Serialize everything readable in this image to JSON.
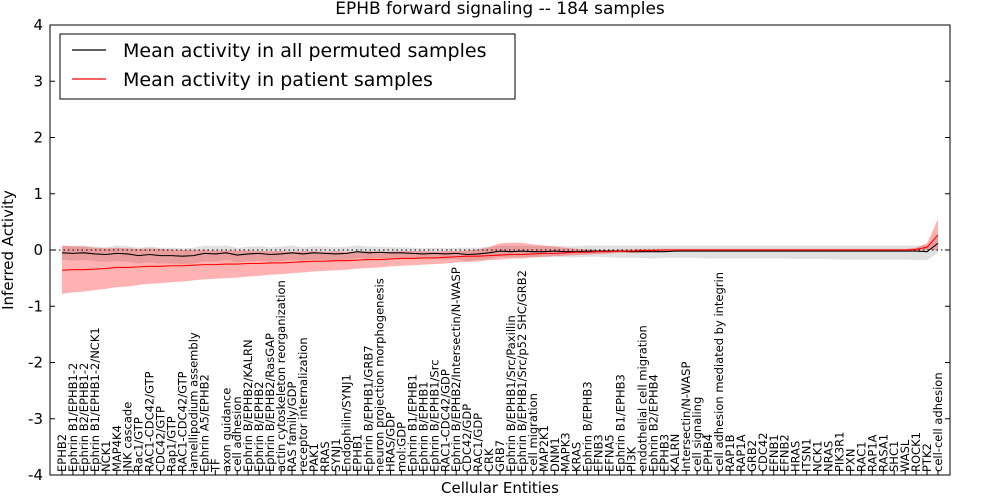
{
  "chart_data": {
    "type": "line",
    "title": "EPHB forward signaling -- 184 samples",
    "xlabel": "Cellular Entities",
    "ylabel": "Inferred Activity",
    "ylim": [
      -4,
      4
    ],
    "yticks": [
      -4,
      -3,
      -2,
      -1,
      0,
      1,
      2,
      3,
      4
    ],
    "reference_line_y": 0,
    "legend": {
      "position": "top-left",
      "entries": [
        {
          "label": "Mean activity in all permuted samples",
          "color": "#000000"
        },
        {
          "label": "Mean activity in patient samples",
          "color": "#ff0000"
        }
      ]
    },
    "categories": [
      "EPHB2",
      "Ephrin B1/EPHB1-2",
      "Ephrin B2/EPHB1-2",
      "Ephrin B1/EPHB1-2/NCK1",
      "NCK1",
      "MAP4K4",
      "JNK cascade",
      "Rac1/GTP",
      "RAC1-CDC42/GTP",
      "CDC42/GTP",
      "Rap1/GTP",
      "RAC1-CDC42/GTP",
      "lamellipodium assembly",
      "Ephrin A5/EPHB2",
      "TF",
      "axon guidance",
      "cell adhesion",
      "Ephrin B/EPHB2/KALRN",
      "Ephrin B/EPHB2",
      "Ephrin B/EPHB2/RasGAP",
      "actin cytoskeleton reorganization",
      "RAS family/GDP",
      "receptor internalization",
      "PAK1",
      "RRAS",
      "SYNJ1",
      "Endophilin/SYNJ1",
      "EPHB1",
      "Ephrin B/EPHB1/GRB7",
      "neuron projection morphogenesis",
      "HRAS/GDP",
      "mol:GDP",
      "Ephrin B1/EPHB1",
      "Ephrin B/EPHB1",
      "Ephrin B/EPHB1/Src",
      "RAC1-CDC42/GDP",
      "Ephrin B/EPHB2/Intersectin/N-WASP",
      "CDC42/GDP",
      "RAC1/GDP",
      "CRK",
      "GRB7",
      "Ephrin B/EPHB1/Src/Paxillin",
      "Ephrin B/EPHB1/Src/p52 SHC/GRB2",
      "cell migration",
      "MAP2K1",
      "DNM1",
      "MAPK3",
      "KRAS",
      "Ephrin B/EPHB3",
      "EFNB3",
      "EFNA5",
      "Ephrin B1/EPHB3",
      "PI3K",
      "endothelial cell migration",
      "Ephrin B2/EPHB4",
      "EPHB3",
      "KALRN",
      "Intersectin/N-WASP",
      "cell signaling",
      "EPHB4",
      "cell adhesion mediated by integrin",
      "RAP1B",
      "RAP1A",
      "GRB2",
      "CDC42",
      "EFNB1",
      "EFNB2",
      "HRAS",
      "ITSN1",
      "NCK1",
      "NRAS",
      "PIK3R1",
      "PXN",
      "RAC1",
      "RAP1A",
      "RASA1",
      "SHC1",
      "WASL",
      "ROCK1",
      "PTK2",
      "cell-cell adhesion"
    ],
    "series": [
      {
        "name": "Mean activity in all permuted samples",
        "color": "#000000",
        "values": [
          -0.05,
          -0.06,
          -0.05,
          -0.07,
          -0.08,
          -0.06,
          -0.07,
          -0.1,
          -0.08,
          -0.1,
          -0.1,
          -0.11,
          -0.1,
          -0.06,
          -0.07,
          -0.05,
          -0.09,
          -0.07,
          -0.06,
          -0.08,
          -0.07,
          -0.05,
          -0.07,
          -0.05,
          -0.06,
          -0.07,
          -0.06,
          -0.03,
          -0.05,
          -0.04,
          -0.05,
          -0.05,
          -0.06,
          -0.07,
          -0.06,
          -0.07,
          -0.06,
          -0.08,
          -0.07,
          -0.05,
          -0.02,
          -0.03,
          -0.02,
          -0.03,
          -0.03,
          -0.02,
          -0.03,
          -0.03,
          -0.02,
          -0.02,
          -0.02,
          -0.02,
          -0.03,
          -0.03,
          -0.03,
          -0.03,
          -0.02,
          -0.02,
          -0.02,
          -0.02,
          -0.02,
          -0.02,
          -0.02,
          -0.02,
          -0.02,
          -0.02,
          -0.02,
          -0.02,
          -0.02,
          -0.02,
          -0.02,
          -0.02,
          -0.02,
          -0.02,
          -0.02,
          -0.02,
          -0.02,
          -0.02,
          -0.02,
          -0.03,
          0.12
        ],
        "band_lower": [
          -0.17,
          -0.19,
          -0.18,
          -0.2,
          -0.21,
          -0.2,
          -0.21,
          -0.24,
          -0.22,
          -0.24,
          -0.24,
          -0.25,
          -0.24,
          -0.2,
          -0.21,
          -0.18,
          -0.22,
          -0.2,
          -0.19,
          -0.21,
          -0.2,
          -0.18,
          -0.19,
          -0.17,
          -0.18,
          -0.19,
          -0.18,
          -0.14,
          -0.16,
          -0.14,
          -0.15,
          -0.15,
          -0.16,
          -0.17,
          -0.16,
          -0.17,
          -0.16,
          -0.2,
          -0.18,
          -0.16,
          -0.12,
          -0.13,
          -0.12,
          -0.13,
          -0.13,
          -0.12,
          -0.13,
          -0.13,
          -0.12,
          -0.12,
          -0.13,
          -0.14,
          -0.14,
          -0.14,
          -0.15,
          -0.14,
          -0.14,
          -0.14,
          -0.14,
          -0.15,
          -0.15,
          -0.15,
          -0.15,
          -0.15,
          -0.15,
          -0.15,
          -0.15,
          -0.16,
          -0.16,
          -0.16,
          -0.16,
          -0.17,
          -0.17,
          -0.17,
          -0.17,
          -0.17,
          -0.17,
          -0.17,
          -0.18,
          -0.18,
          -0.05
        ],
        "band_upper": [
          0.07,
          0.07,
          0.08,
          0.06,
          0.05,
          0.08,
          0.07,
          0.04,
          0.06,
          0.04,
          0.04,
          0.03,
          0.04,
          0.08,
          0.07,
          0.08,
          0.04,
          0.06,
          0.07,
          0.05,
          0.06,
          0.08,
          0.05,
          0.07,
          0.06,
          0.05,
          0.06,
          0.08,
          0.06,
          0.06,
          0.05,
          0.05,
          0.04,
          0.03,
          0.04,
          0.03,
          0.04,
          0.04,
          0.04,
          0.06,
          0.08,
          0.07,
          0.08,
          0.07,
          0.07,
          0.08,
          0.07,
          0.07,
          0.08,
          0.08,
          0.08,
          0.08,
          0.08,
          0.08,
          0.08,
          0.08,
          0.08,
          0.08,
          0.08,
          0.08,
          0.08,
          0.08,
          0.08,
          0.08,
          0.08,
          0.08,
          0.08,
          0.08,
          0.08,
          0.08,
          0.08,
          0.08,
          0.08,
          0.08,
          0.08,
          0.08,
          0.08,
          0.08,
          0.08,
          0.08,
          0.28
        ]
      },
      {
        "name": "Mean activity in patient samples",
        "color": "#ff0000",
        "values": [
          -0.36,
          -0.35,
          -0.35,
          -0.34,
          -0.33,
          -0.31,
          -0.31,
          -0.3,
          -0.29,
          -0.29,
          -0.28,
          -0.28,
          -0.27,
          -0.26,
          -0.26,
          -0.25,
          -0.25,
          -0.24,
          -0.24,
          -0.23,
          -0.23,
          -0.22,
          -0.21,
          -0.2,
          -0.2,
          -0.19,
          -0.19,
          -0.18,
          -0.17,
          -0.17,
          -0.16,
          -0.15,
          -0.15,
          -0.14,
          -0.14,
          -0.13,
          -0.12,
          -0.11,
          -0.11,
          -0.1,
          -0.09,
          -0.08,
          -0.08,
          -0.07,
          -0.06,
          -0.06,
          -0.05,
          -0.04,
          -0.04,
          -0.03,
          -0.03,
          -0.02,
          -0.02,
          -0.01,
          -0.01,
          0.0,
          0.0,
          0.0,
          0.0,
          0.0,
          0.0,
          0.0,
          0.0,
          0.0,
          0.0,
          0.0,
          0.0,
          0.0,
          0.0,
          0.0,
          0.0,
          0.0,
          0.0,
          0.0,
          0.0,
          0.0,
          0.0,
          0.0,
          0.01,
          0.05,
          0.27
        ],
        "band_lower": [
          -0.78,
          -0.75,
          -0.74,
          -0.71,
          -0.69,
          -0.66,
          -0.65,
          -0.62,
          -0.6,
          -0.59,
          -0.57,
          -0.56,
          -0.54,
          -0.52,
          -0.51,
          -0.5,
          -0.49,
          -0.47,
          -0.46,
          -0.44,
          -0.43,
          -0.41,
          -0.4,
          -0.38,
          -0.37,
          -0.36,
          -0.35,
          -0.33,
          -0.32,
          -0.31,
          -0.29,
          -0.28,
          -0.27,
          -0.26,
          -0.25,
          -0.24,
          -0.22,
          -0.21,
          -0.2,
          -0.18,
          -0.17,
          -0.15,
          -0.15,
          -0.13,
          -0.12,
          -0.11,
          -0.1,
          -0.09,
          -0.08,
          -0.07,
          -0.06,
          -0.05,
          -0.05,
          -0.04,
          -0.03,
          -0.02,
          -0.02,
          -0.02,
          -0.02,
          -0.02,
          -0.02,
          -0.02,
          -0.02,
          -0.02,
          -0.02,
          -0.02,
          -0.02,
          -0.02,
          -0.02,
          -0.02,
          -0.02,
          -0.02,
          -0.02,
          -0.02,
          -0.02,
          -0.02,
          -0.02,
          -0.02,
          -0.02,
          0.0,
          0.0
        ],
        "band_upper": [
          0.08,
          0.07,
          0.06,
          0.04,
          0.03,
          0.04,
          0.03,
          0.02,
          0.03,
          0.02,
          0.01,
          0.0,
          0.0,
          0.0,
          -0.01,
          -0.01,
          -0.01,
          -0.01,
          -0.02,
          -0.02,
          -0.02,
          -0.03,
          -0.02,
          -0.02,
          -0.03,
          -0.02,
          -0.03,
          -0.03,
          -0.02,
          -0.03,
          -0.03,
          -0.02,
          -0.02,
          -0.02,
          -0.03,
          -0.02,
          -0.02,
          -0.01,
          0.01,
          0.05,
          0.12,
          0.13,
          0.13,
          0.1,
          0.08,
          0.06,
          0.04,
          0.02,
          0.01,
          0.0,
          0.0,
          0.01,
          0.01,
          0.02,
          0.02,
          0.02,
          0.02,
          0.02,
          0.02,
          0.02,
          0.02,
          0.02,
          0.02,
          0.02,
          0.02,
          0.02,
          0.02,
          0.02,
          0.02,
          0.02,
          0.02,
          0.02,
          0.02,
          0.02,
          0.02,
          0.02,
          0.02,
          0.02,
          0.04,
          0.12,
          0.55
        ]
      }
    ]
  }
}
